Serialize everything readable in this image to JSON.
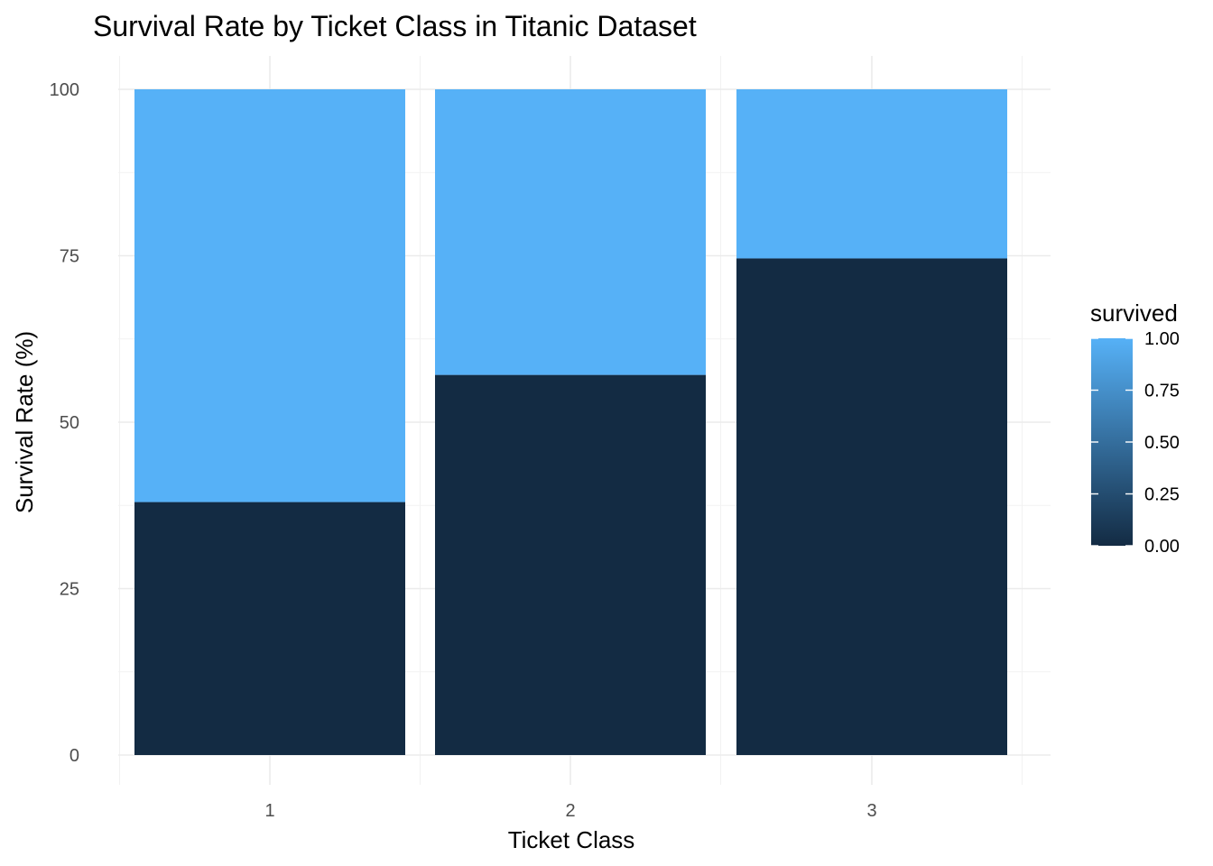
{
  "chart_data": {
    "type": "bar",
    "stacked": true,
    "title": "Survival Rate by Ticket Class in Titanic Dataset",
    "xlabel": "Ticket Class",
    "ylabel": "Survival Rate (%)",
    "categories": [
      "1",
      "2",
      "3"
    ],
    "series": [
      {
        "name": "0",
        "survived_value": 0,
        "color": "#132b43",
        "values": [
          38.0,
          57.1,
          74.6
        ]
      },
      {
        "name": "1",
        "survived_value": 1,
        "color": "#56b1f7",
        "values": [
          62.0,
          42.9,
          25.4
        ]
      }
    ],
    "ylim": [
      0,
      100
    ],
    "yticks": [
      0,
      25,
      50,
      75,
      100
    ],
    "grid": true,
    "legend": {
      "title": "survived",
      "position": "right",
      "type": "colorbar",
      "low_color": "#132b43",
      "high_color": "#56b1f7",
      "labels": [
        "1.00",
        "0.75",
        "0.50",
        "0.25",
        "0.00"
      ],
      "values": [
        1.0,
        0.75,
        0.5,
        0.25,
        0.0
      ]
    }
  }
}
